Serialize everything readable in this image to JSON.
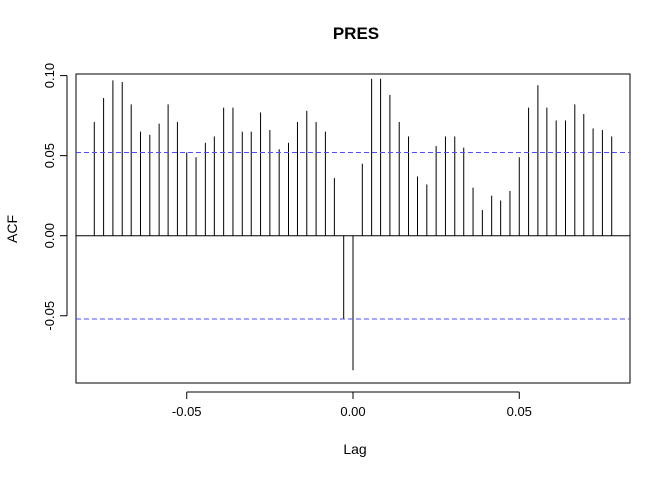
{
  "chart_data": {
    "type": "bar",
    "title": "PRES",
    "xlabel": "Lag",
    "ylabel": "ACF",
    "xlim": [
      -0.0833,
      0.0833
    ],
    "ylim": [
      -0.092,
      0.101
    ],
    "x_ticks": [
      {
        "value": -0.05,
        "label": "-0.05"
      },
      {
        "value": 0.0,
        "label": "0.00"
      },
      {
        "value": 0.05,
        "label": "0.05"
      }
    ],
    "y_ticks": [
      {
        "value": -0.05,
        "label": "-0.05"
      },
      {
        "value": 0.0,
        "label": "0.00"
      },
      {
        "value": 0.05,
        "label": "0.05"
      },
      {
        "value": 0.1,
        "label": "0.10"
      }
    ],
    "confidence_limit": 0.052,
    "confidence_color": "#4d4dff",
    "lags": [
      -0.0778,
      -0.075,
      -0.0722,
      -0.0694,
      -0.0667,
      -0.0639,
      -0.0611,
      -0.0583,
      -0.0556,
      -0.0528,
      -0.05,
      -0.0472,
      -0.0444,
      -0.0417,
      -0.0389,
      -0.0361,
      -0.0333,
      -0.0306,
      -0.0278,
      -0.025,
      -0.0222,
      -0.0194,
      -0.0167,
      -0.0139,
      -0.0111,
      -0.0083,
      -0.0056,
      -0.0028,
      0.0,
      0.0028,
      0.0056,
      0.0083,
      0.0111,
      0.0139,
      0.0167,
      0.0194,
      0.0222,
      0.025,
      0.0278,
      0.0306,
      0.0333,
      0.0361,
      0.0389,
      0.0417,
      0.0444,
      0.0472,
      0.05,
      0.0528,
      0.0556,
      0.0583,
      0.0611,
      0.0639,
      0.0667,
      0.0694,
      0.0722,
      0.075,
      0.0778
    ],
    "values": [
      0.071,
      0.086,
      0.097,
      0.096,
      0.082,
      0.065,
      0.063,
      0.07,
      0.082,
      0.071,
      0.052,
      0.049,
      0.058,
      0.062,
      0.08,
      0.08,
      0.065,
      0.065,
      0.077,
      0.066,
      0.054,
      0.058,
      0.071,
      0.078,
      0.071,
      0.065,
      0.036,
      -0.052,
      -0.084,
      0.045,
      0.098,
      0.098,
      0.088,
      0.071,
      0.062,
      0.037,
      0.032,
      0.056,
      0.062,
      0.062,
      0.055,
      0.03,
      0.016,
      0.025,
      0.022,
      0.028,
      0.049,
      0.08,
      0.094,
      0.08,
      0.072,
      0.072,
      0.082,
      0.076,
      0.067,
      0.066,
      0.062
    ],
    "grid": false,
    "legend": "none"
  }
}
